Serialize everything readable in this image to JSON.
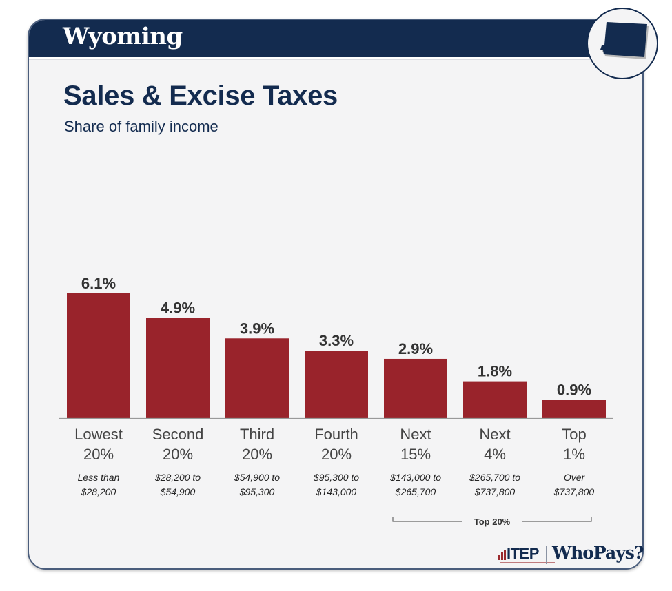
{
  "header": {
    "state": "Wyoming",
    "state_icon": "wyoming-state-shape-icon"
  },
  "title": "Sales & Excise Taxes",
  "subtitle": "Share of family income",
  "colors": {
    "bar": "#99232b",
    "navy": "#132b4f",
    "text": "#333333",
    "axis": "#999999"
  },
  "chart_data": {
    "type": "bar",
    "title": "Sales & Excise Taxes",
    "subtitle": "Share of family income",
    "categories": [
      "Lowest 20%",
      "Second 20%",
      "Third 20%",
      "Fourth 20%",
      "Next 15%",
      "Next 4%",
      "Top 1%"
    ],
    "category_lines": [
      [
        "Lowest",
        "20%"
      ],
      [
        "Second",
        "20%"
      ],
      [
        "Third",
        "20%"
      ],
      [
        "Fourth",
        "20%"
      ],
      [
        "Next",
        "15%"
      ],
      [
        "Next",
        "4%"
      ],
      [
        "Top",
        "1%"
      ]
    ],
    "income_ranges": [
      [
        "Less than",
        "$28,200"
      ],
      [
        "$28,200 to",
        "$54,900"
      ],
      [
        "$54,900 to",
        "$95,300"
      ],
      [
        "$95,300 to",
        "$143,000"
      ],
      [
        "$143,000 to",
        "$265,700"
      ],
      [
        "$265,700 to",
        "$737,800"
      ],
      [
        "Over",
        "$737,800"
      ]
    ],
    "values": [
      6.1,
      4.9,
      3.9,
      3.3,
      2.9,
      1.8,
      0.9
    ],
    "value_labels": [
      "6.1%",
      "4.9%",
      "3.9%",
      "3.3%",
      "2.9%",
      "1.8%",
      "0.9%"
    ],
    "unit": "%",
    "xlabel": "",
    "ylabel": "",
    "ylim": [
      0,
      6.1
    ],
    "grid": false,
    "legend": "none",
    "bracket": {
      "label": "Top 20%",
      "from_category": 4,
      "to_category": 6
    }
  },
  "footer": {
    "itep_label": "ITEP",
    "whopays_label": "WhoPays?"
  }
}
